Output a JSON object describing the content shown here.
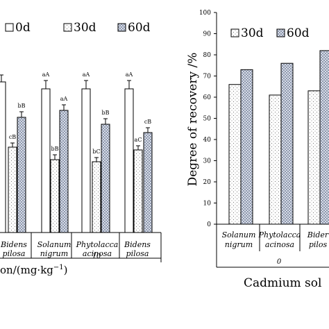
{
  "chart_data": [
    {
      "type": "bar",
      "panel": "left",
      "legend": [
        "0d",
        "30d",
        "60d"
      ],
      "xlabel_fragment": "on/(mg·kg",
      "xlabel_exponent": "−1",
      "xlabel_close": ")",
      "group_label": "10",
      "categories": [
        {
          "name": [
            "Bidens",
            "pilosa"
          ]
        },
        {
          "name": [
            "Solanum",
            "nigrum"
          ]
        },
        {
          "name": [
            "Phytolacca",
            "acinosa"
          ]
        },
        {
          "name": [
            "Bidens",
            "pilosa"
          ]
        }
      ],
      "series": [
        {
          "name": "0d",
          "values": [
            null,
            null,
            null,
            null
          ]
        },
        {
          "name": "30d",
          "values": [
            null,
            null,
            null,
            null
          ]
        },
        {
          "name": "60d",
          "values": [
            null,
            null,
            null,
            null
          ]
        }
      ],
      "significance_labels": [
        [
          "",
          "cB",
          "bB"
        ],
        [
          "aA",
          "bB",
          "aA"
        ],
        [
          "aA",
          "bC",
          "bB"
        ],
        [
          "aA",
          "aC",
          "cB"
        ]
      ]
    },
    {
      "type": "bar",
      "panel": "right",
      "legend": [
        "30d",
        "60d"
      ],
      "ylabel": "Degree of recovery /%",
      "yticks": [
        0,
        10,
        20,
        30,
        40,
        50,
        60,
        70,
        80,
        90,
        100
      ],
      "ylim": [
        0,
        100
      ],
      "xlabel": "Cadmium sol",
      "group_label": "0",
      "categories": [
        {
          "name": [
            "Solanum",
            "nigrum"
          ]
        },
        {
          "name": [
            "Phytolacca",
            "acinosa"
          ]
        },
        {
          "name": [
            "Bider",
            "pilos"
          ]
        }
      ],
      "series": [
        {
          "name": "30d",
          "values": [
            66,
            61,
            63
          ]
        },
        {
          "name": "60d",
          "values": [
            73,
            76,
            82
          ]
        }
      ]
    }
  ]
}
